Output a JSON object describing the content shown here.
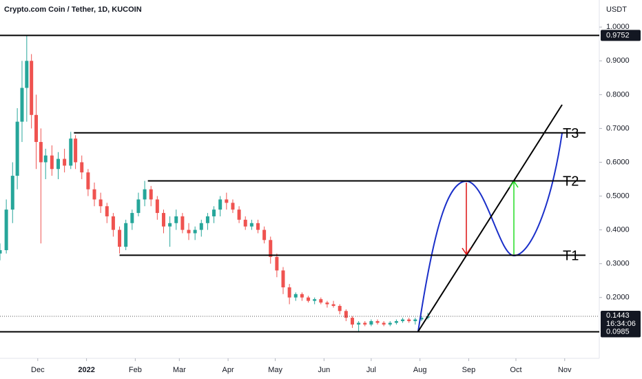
{
  "chart_data": {
    "type": "candlestick",
    "title": "Crypto.com Coin / Tether, 1D, KUCOIN",
    "y_unit": "USDT",
    "x": [
      -24,
      -20,
      -16,
      -13,
      -10,
      -7,
      -4,
      -1,
      2,
      5,
      9,
      13,
      17,
      21,
      24,
      28,
      32,
      36,
      40,
      44,
      48,
      52,
      56,
      60,
      64,
      68,
      72,
      76,
      80,
      84,
      88,
      92,
      96,
      100,
      104,
      108,
      112,
      116,
      120,
      124,
      128,
      132,
      136,
      140,
      144,
      148,
      152,
      156,
      160,
      164,
      168,
      172,
      176,
      180,
      184,
      188,
      192,
      196,
      200,
      204,
      208,
      212,
      216,
      220,
      224,
      228,
      232,
      236,
      240,
      244,
      248
    ],
    "open": [
      0.33,
      0.34,
      0.46,
      0.56,
      0.72,
      0.82,
      0.9,
      0.74,
      0.66,
      0.6,
      0.62,
      0.58,
      0.61,
      0.59,
      0.67,
      0.6,
      0.57,
      0.52,
      0.49,
      0.47,
      0.44,
      0.4,
      0.35,
      0.42,
      0.45,
      0.49,
      0.52,
      0.49,
      0.45,
      0.41,
      0.42,
      0.44,
      0.4,
      0.39,
      0.4,
      0.42,
      0.44,
      0.46,
      0.49,
      0.48,
      0.46,
      0.43,
      0.41,
      0.42,
      0.4,
      0.37,
      0.32,
      0.28,
      0.23,
      0.2,
      0.21,
      0.2,
      0.19,
      0.195,
      0.185,
      0.18,
      0.175,
      0.16,
      0.14,
      0.12,
      0.125,
      0.12,
      0.13,
      0.125,
      0.12,
      0.125,
      0.13,
      0.135,
      0.13,
      0.135,
      0.14
    ],
    "high": [
      0.36,
      0.49,
      0.6,
      0.76,
      0.9,
      0.975,
      0.92,
      0.8,
      0.7,
      0.64,
      0.65,
      0.63,
      0.64,
      0.69,
      0.68,
      0.62,
      0.58,
      0.54,
      0.51,
      0.48,
      0.45,
      0.41,
      0.43,
      0.46,
      0.51,
      0.545,
      0.53,
      0.5,
      0.46,
      0.44,
      0.46,
      0.45,
      0.42,
      0.41,
      0.43,
      0.45,
      0.47,
      0.5,
      0.51,
      0.49,
      0.47,
      0.44,
      0.43,
      0.43,
      0.41,
      0.38,
      0.33,
      0.29,
      0.24,
      0.215,
      0.215,
      0.205,
      0.2,
      0.2,
      0.19,
      0.19,
      0.18,
      0.165,
      0.145,
      0.13,
      0.13,
      0.135,
      0.135,
      0.13,
      0.13,
      0.135,
      0.14,
      0.14,
      0.14,
      0.145,
      0.155
    ],
    "low": [
      0.31,
      0.33,
      0.42,
      0.52,
      0.66,
      0.72,
      0.7,
      0.58,
      0.36,
      0.55,
      0.56,
      0.55,
      0.57,
      0.58,
      0.58,
      0.55,
      0.5,
      0.47,
      0.45,
      0.42,
      0.38,
      0.33,
      0.34,
      0.4,
      0.44,
      0.47,
      0.47,
      0.43,
      0.39,
      0.35,
      0.4,
      0.39,
      0.37,
      0.37,
      0.38,
      0.4,
      0.42,
      0.44,
      0.46,
      0.45,
      0.42,
      0.4,
      0.4,
      0.39,
      0.36,
      0.3,
      0.26,
      0.21,
      0.18,
      0.19,
      0.19,
      0.185,
      0.18,
      0.18,
      0.17,
      0.17,
      0.15,
      0.13,
      0.11,
      0.1,
      0.115,
      0.115,
      0.12,
      0.115,
      0.115,
      0.12,
      0.125,
      0.125,
      0.12,
      0.13,
      0.135
    ],
    "close": [
      0.34,
      0.46,
      0.56,
      0.72,
      0.82,
      0.9,
      0.74,
      0.66,
      0.6,
      0.62,
      0.58,
      0.61,
      0.59,
      0.67,
      0.6,
      0.57,
      0.52,
      0.49,
      0.47,
      0.44,
      0.4,
      0.35,
      0.42,
      0.45,
      0.49,
      0.52,
      0.49,
      0.45,
      0.41,
      0.42,
      0.44,
      0.4,
      0.39,
      0.4,
      0.42,
      0.44,
      0.46,
      0.49,
      0.48,
      0.46,
      0.43,
      0.41,
      0.42,
      0.4,
      0.37,
      0.32,
      0.28,
      0.23,
      0.2,
      0.21,
      0.2,
      0.19,
      0.195,
      0.185,
      0.18,
      0.175,
      0.16,
      0.14,
      0.12,
      0.125,
      0.12,
      0.13,
      0.125,
      0.12,
      0.125,
      0.13,
      0.135,
      0.13,
      0.135,
      0.14,
      0.1443
    ],
    "up_color": "#26a69a",
    "down_color": "#ef5350",
    "xlim": [
      -24,
      357
    ],
    "ylim": [
      0.02,
      1.08
    ],
    "xticks": [
      {
        "value": 0,
        "label": "Dec"
      },
      {
        "value": 31,
        "label": "2022"
      },
      {
        "value": 62,
        "label": "Feb"
      },
      {
        "value": 90,
        "label": "Mar"
      },
      {
        "value": 121,
        "label": "Apr"
      },
      {
        "value": 151,
        "label": "May"
      },
      {
        "value": 182,
        "label": "Jun"
      },
      {
        "value": 212,
        "label": "Jul"
      },
      {
        "value": 243,
        "label": "Aug"
      },
      {
        "value": 274,
        "label": "Sep"
      },
      {
        "value": 304,
        "label": "Oct"
      },
      {
        "value": 335,
        "label": "Nov"
      }
    ],
    "yticks": [
      {
        "value": 1.0,
        "label": "1.0000"
      },
      {
        "value": 0.9,
        "label": "0.9000"
      },
      {
        "value": 0.8,
        "label": "0.8000"
      },
      {
        "value": 0.7,
        "label": "0.7000"
      },
      {
        "value": 0.6,
        "label": "0.6000"
      },
      {
        "value": 0.5,
        "label": "0.5000"
      },
      {
        "value": 0.4,
        "label": "0.4000"
      },
      {
        "value": 0.3,
        "label": "0.3000"
      },
      {
        "value": 0.2,
        "label": "0.2000"
      }
    ],
    "price_lines": [
      {
        "value": 0.9752,
        "label": "0.9752"
      },
      {
        "value": 0.0985,
        "label": "0.0985"
      }
    ],
    "last_price": {
      "value": 0.1443,
      "label": "0.1443",
      "countdown": "16:34:06"
    },
    "targets": [
      {
        "name": "T3",
        "value": 0.687,
        "start": 23
      },
      {
        "name": "T2",
        "value": 0.545,
        "start": 70
      },
      {
        "name": "T1",
        "value": 0.325,
        "start": 52
      }
    ]
  }
}
